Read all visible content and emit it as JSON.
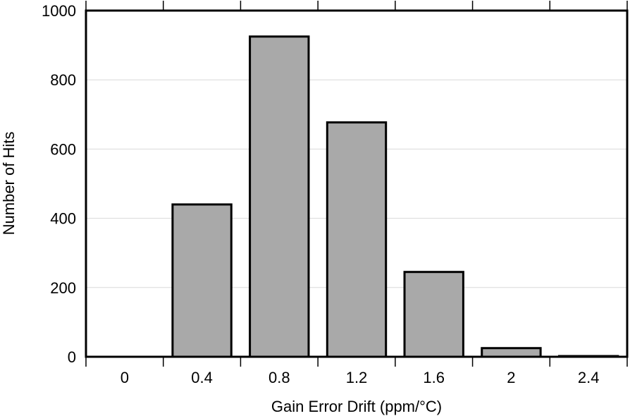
{
  "chart_data": {
    "type": "bar",
    "xlabel": "Gain Error Drift (ppm/°C)",
    "ylabel": "Number of Hits",
    "categories": [
      "0",
      "0.4",
      "0.8",
      "1.2",
      "1.6",
      "2",
      "2.4"
    ],
    "values": [
      0,
      440,
      925,
      677,
      245,
      25,
      2
    ],
    "ylim": [
      0,
      1000
    ],
    "yticks": [
      "0",
      "200",
      "400",
      "600",
      "800",
      "1000"
    ],
    "grid": "horizontal",
    "colors": {
      "bar_fill": "#a9a9a9",
      "bar_stroke": "#000000",
      "grid": "#d9d9d9"
    }
  }
}
